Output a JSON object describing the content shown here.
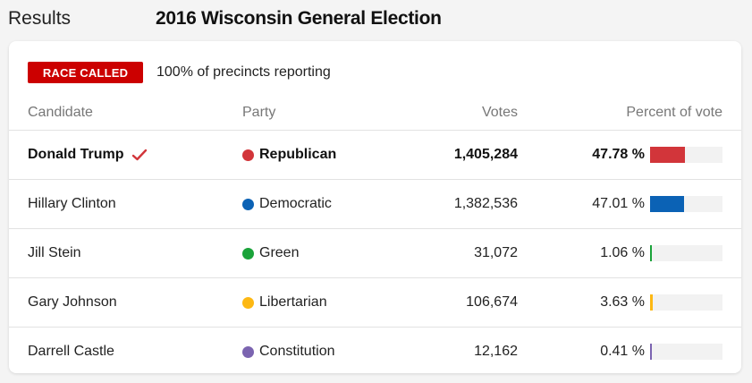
{
  "header": {
    "section_label": "Results",
    "title": "2016 Wisconsin General Election"
  },
  "status": {
    "badge": "RACE CALLED",
    "badge_color": "#cc0000",
    "reporting": "100% of precincts reporting"
  },
  "table": {
    "columns": {
      "candidate": "Candidate",
      "party": "Party",
      "votes": "Votes",
      "percent": "Percent of vote"
    },
    "rows": [
      {
        "candidate": "Donald Trump",
        "winner": true,
        "party": "Republican",
        "party_color": "#d2353a",
        "votes": "1,405,284",
        "percent_label": "47.78 %",
        "percent": 47.78
      },
      {
        "candidate": "Hillary Clinton",
        "winner": false,
        "party": "Democratic",
        "party_color": "#0b62b5",
        "votes": "1,382,536",
        "percent_label": "47.01 %",
        "percent": 47.01
      },
      {
        "candidate": "Jill Stein",
        "winner": false,
        "party": "Green",
        "party_color": "#1aa33a",
        "votes": "31,072",
        "percent_label": "1.06 %",
        "percent": 1.06
      },
      {
        "candidate": "Gary Johnson",
        "winner": false,
        "party": "Libertarian",
        "party_color": "#fdb813",
        "votes": "106,674",
        "percent_label": "3.63 %",
        "percent": 3.63
      },
      {
        "candidate": "Darrell Castle",
        "winner": false,
        "party": "Constitution",
        "party_color": "#7b64b0",
        "votes": "12,162",
        "percent_label": "0.41 %",
        "percent": 0.41
      }
    ]
  }
}
